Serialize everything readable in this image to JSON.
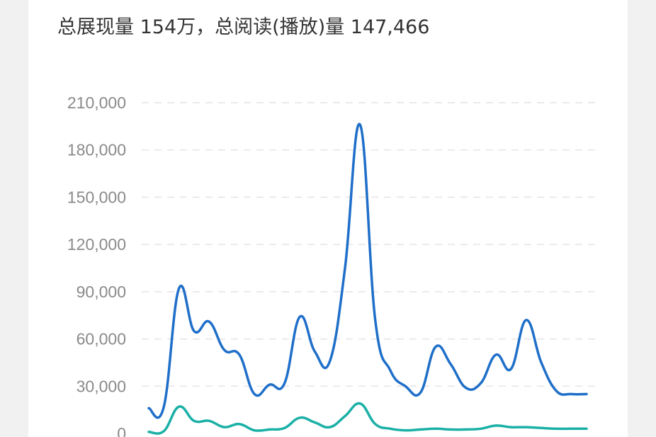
{
  "headline": "总展现量 154万，总阅读(播放)量 147,466",
  "colors": {
    "impressions": "#1f6fc9",
    "reads": "#1ab0a6",
    "grid": "#e4e4e4",
    "tick": "#8a8a8a"
  },
  "chart_data": {
    "type": "line",
    "title": "",
    "xlabel": "",
    "ylabel": "",
    "ylim": [
      0,
      210000
    ],
    "yticks": [
      0,
      30000,
      60000,
      90000,
      120000,
      150000,
      180000,
      210000
    ],
    "ytick_labels": [
      "0",
      "30,000",
      "60,000",
      "90,000",
      "120,000",
      "150,000",
      "180,000",
      "210,000"
    ],
    "grid": true,
    "legend": "none",
    "x": [
      1,
      2,
      3,
      4,
      5,
      6,
      7,
      8,
      9,
      10,
      11,
      12,
      13,
      14,
      15,
      16,
      17,
      18,
      19,
      20,
      21,
      22,
      23,
      24,
      25,
      26,
      27,
      28,
      29,
      30
    ],
    "series": [
      {
        "color": "#1f6fc9",
        "values": [
          16000,
          17000,
          92000,
          65000,
          71000,
          53000,
          50000,
          25000,
          31000,
          32000,
          74000,
          52000,
          46000,
          105000,
          196000,
          72000,
          40000,
          30000,
          26000,
          55000,
          44000,
          29000,
          32000,
          50000,
          41000,
          72000,
          45000,
          27000,
          25000,
          25000
        ]
      },
      {
        "color": "#1ab0a6",
        "values": [
          1000,
          1500,
          17000,
          8000,
          8000,
          4000,
          6000,
          2000,
          2500,
          3500,
          10000,
          7000,
          4000,
          11000,
          19000,
          6000,
          3000,
          2000,
          2500,
          3000,
          2500,
          2500,
          3000,
          5000,
          4000,
          4000,
          3500,
          3000,
          3000,
          3000
        ]
      }
    ]
  }
}
